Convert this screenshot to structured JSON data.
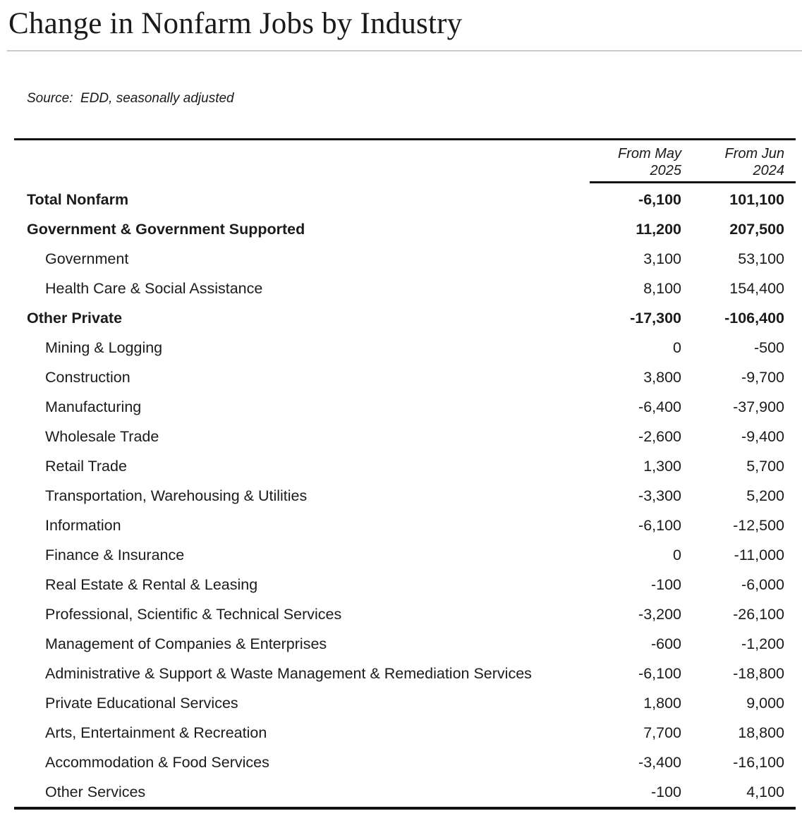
{
  "page": {
    "title": "Change in Nonfarm Jobs by Industry",
    "source_note": "Source:  EDD, seasonally adjusted"
  },
  "colors": {
    "background": "#ffffff",
    "text": "#1a1a1a",
    "title_rule": "#c9c9c9",
    "table_rule": "#111111"
  },
  "chart_data": {
    "type": "table",
    "title": "Change in Nonfarm Jobs by Industry",
    "source_note": "Source:  EDD, seasonally adjusted",
    "units": "jobs (seasonally adjusted change)",
    "col_headers": [
      {
        "top": "From May",
        "bottom": "2025"
      },
      {
        "top": "From Jun",
        "bottom": "2024"
      }
    ],
    "rows": [
      {
        "label": "Total Nonfarm",
        "values": [
          "-6,100",
          "101,100"
        ],
        "emphasis": "bold",
        "indent": 0
      },
      {
        "label": "Government & Government Supported",
        "values": [
          "11,200",
          "207,500"
        ],
        "emphasis": "bold",
        "indent": 0
      },
      {
        "label": "Government",
        "values": [
          "3,100",
          "53,100"
        ],
        "emphasis": "normal",
        "indent": 1
      },
      {
        "label": "Health Care & Social Assistance",
        "values": [
          "8,100",
          "154,400"
        ],
        "emphasis": "normal",
        "indent": 1
      },
      {
        "label": "Other Private",
        "values": [
          "-17,300",
          "-106,400"
        ],
        "emphasis": "bold",
        "indent": 0
      },
      {
        "label": "Mining & Logging",
        "values": [
          "0",
          "-500"
        ],
        "emphasis": "normal",
        "indent": 1
      },
      {
        "label": "Construction",
        "values": [
          "3,800",
          "-9,700"
        ],
        "emphasis": "normal",
        "indent": 1
      },
      {
        "label": "Manufacturing",
        "values": [
          "-6,400",
          "-37,900"
        ],
        "emphasis": "normal",
        "indent": 1
      },
      {
        "label": "Wholesale Trade",
        "values": [
          "-2,600",
          "-9,400"
        ],
        "emphasis": "normal",
        "indent": 1
      },
      {
        "label": "Retail Trade",
        "values": [
          "1,300",
          "5,700"
        ],
        "emphasis": "normal",
        "indent": 1
      },
      {
        "label": "Transportation, Warehousing & Utilities",
        "values": [
          "-3,300",
          "5,200"
        ],
        "emphasis": "normal",
        "indent": 1
      },
      {
        "label": "Information",
        "values": [
          "-6,100",
          "-12,500"
        ],
        "emphasis": "normal",
        "indent": 1
      },
      {
        "label": "Finance & Insurance",
        "values": [
          "0",
          "-11,000"
        ],
        "emphasis": "normal",
        "indent": 1
      },
      {
        "label": "Real Estate & Rental & Leasing",
        "values": [
          "-100",
          "-6,000"
        ],
        "emphasis": "normal",
        "indent": 1
      },
      {
        "label": "Professional, Scientific & Technical Services",
        "values": [
          "-3,200",
          "-26,100"
        ],
        "emphasis": "normal",
        "indent": 1
      },
      {
        "label": "Management of Companies & Enterprises",
        "values": [
          "-600",
          "-1,200"
        ],
        "emphasis": "normal",
        "indent": 1
      },
      {
        "label": "Administrative & Support & Waste Management & Remediation Services",
        "values": [
          "-6,100",
          "-18,800"
        ],
        "emphasis": "normal",
        "indent": 1
      },
      {
        "label": "Private Educational Services",
        "values": [
          "1,800",
          "9,000"
        ],
        "emphasis": "normal",
        "indent": 1
      },
      {
        "label": "Arts, Entertainment & Recreation",
        "values": [
          "7,700",
          "18,800"
        ],
        "emphasis": "normal",
        "indent": 1
      },
      {
        "label": "Accommodation & Food Services",
        "values": [
          "-3,400",
          "-16,100"
        ],
        "emphasis": "normal",
        "indent": 1
      },
      {
        "label": "Other Services",
        "values": [
          "-100",
          "4,100"
        ],
        "emphasis": "normal",
        "indent": 1
      }
    ]
  }
}
